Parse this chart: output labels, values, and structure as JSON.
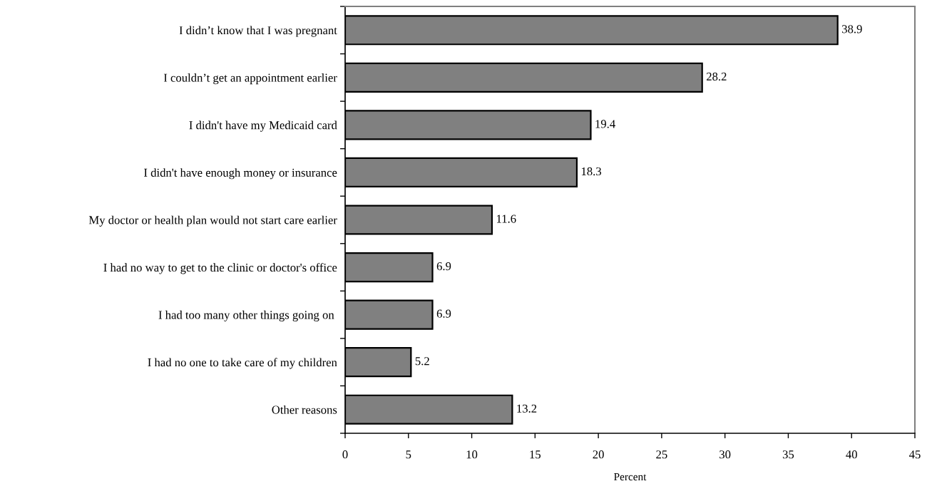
{
  "chart_data": {
    "type": "bar",
    "orientation": "horizontal",
    "categories": [
      "I didn’t know that I was pregnant",
      "I couldn’t get an appointment earlier",
      "I didn't have my Medicaid card",
      "I didn't have enough money or insurance",
      "My doctor or health plan would not start care earlier",
      "I had no way to get to the clinic or doctor's office",
      "I had too many other things going on ",
      "I had no one to take care of my children",
      "Other reasons"
    ],
    "values": [
      38.9,
      28.2,
      19.4,
      18.3,
      11.6,
      6.9,
      6.9,
      5.2,
      13.2
    ],
    "color": "#808080",
    "xlabel": "Percent",
    "xlim": [
      0,
      45
    ],
    "xticks": [
      0,
      5,
      10,
      15,
      20,
      25,
      30,
      35,
      40,
      45
    ],
    "data_labels": true,
    "grid": false,
    "legend": false
  }
}
